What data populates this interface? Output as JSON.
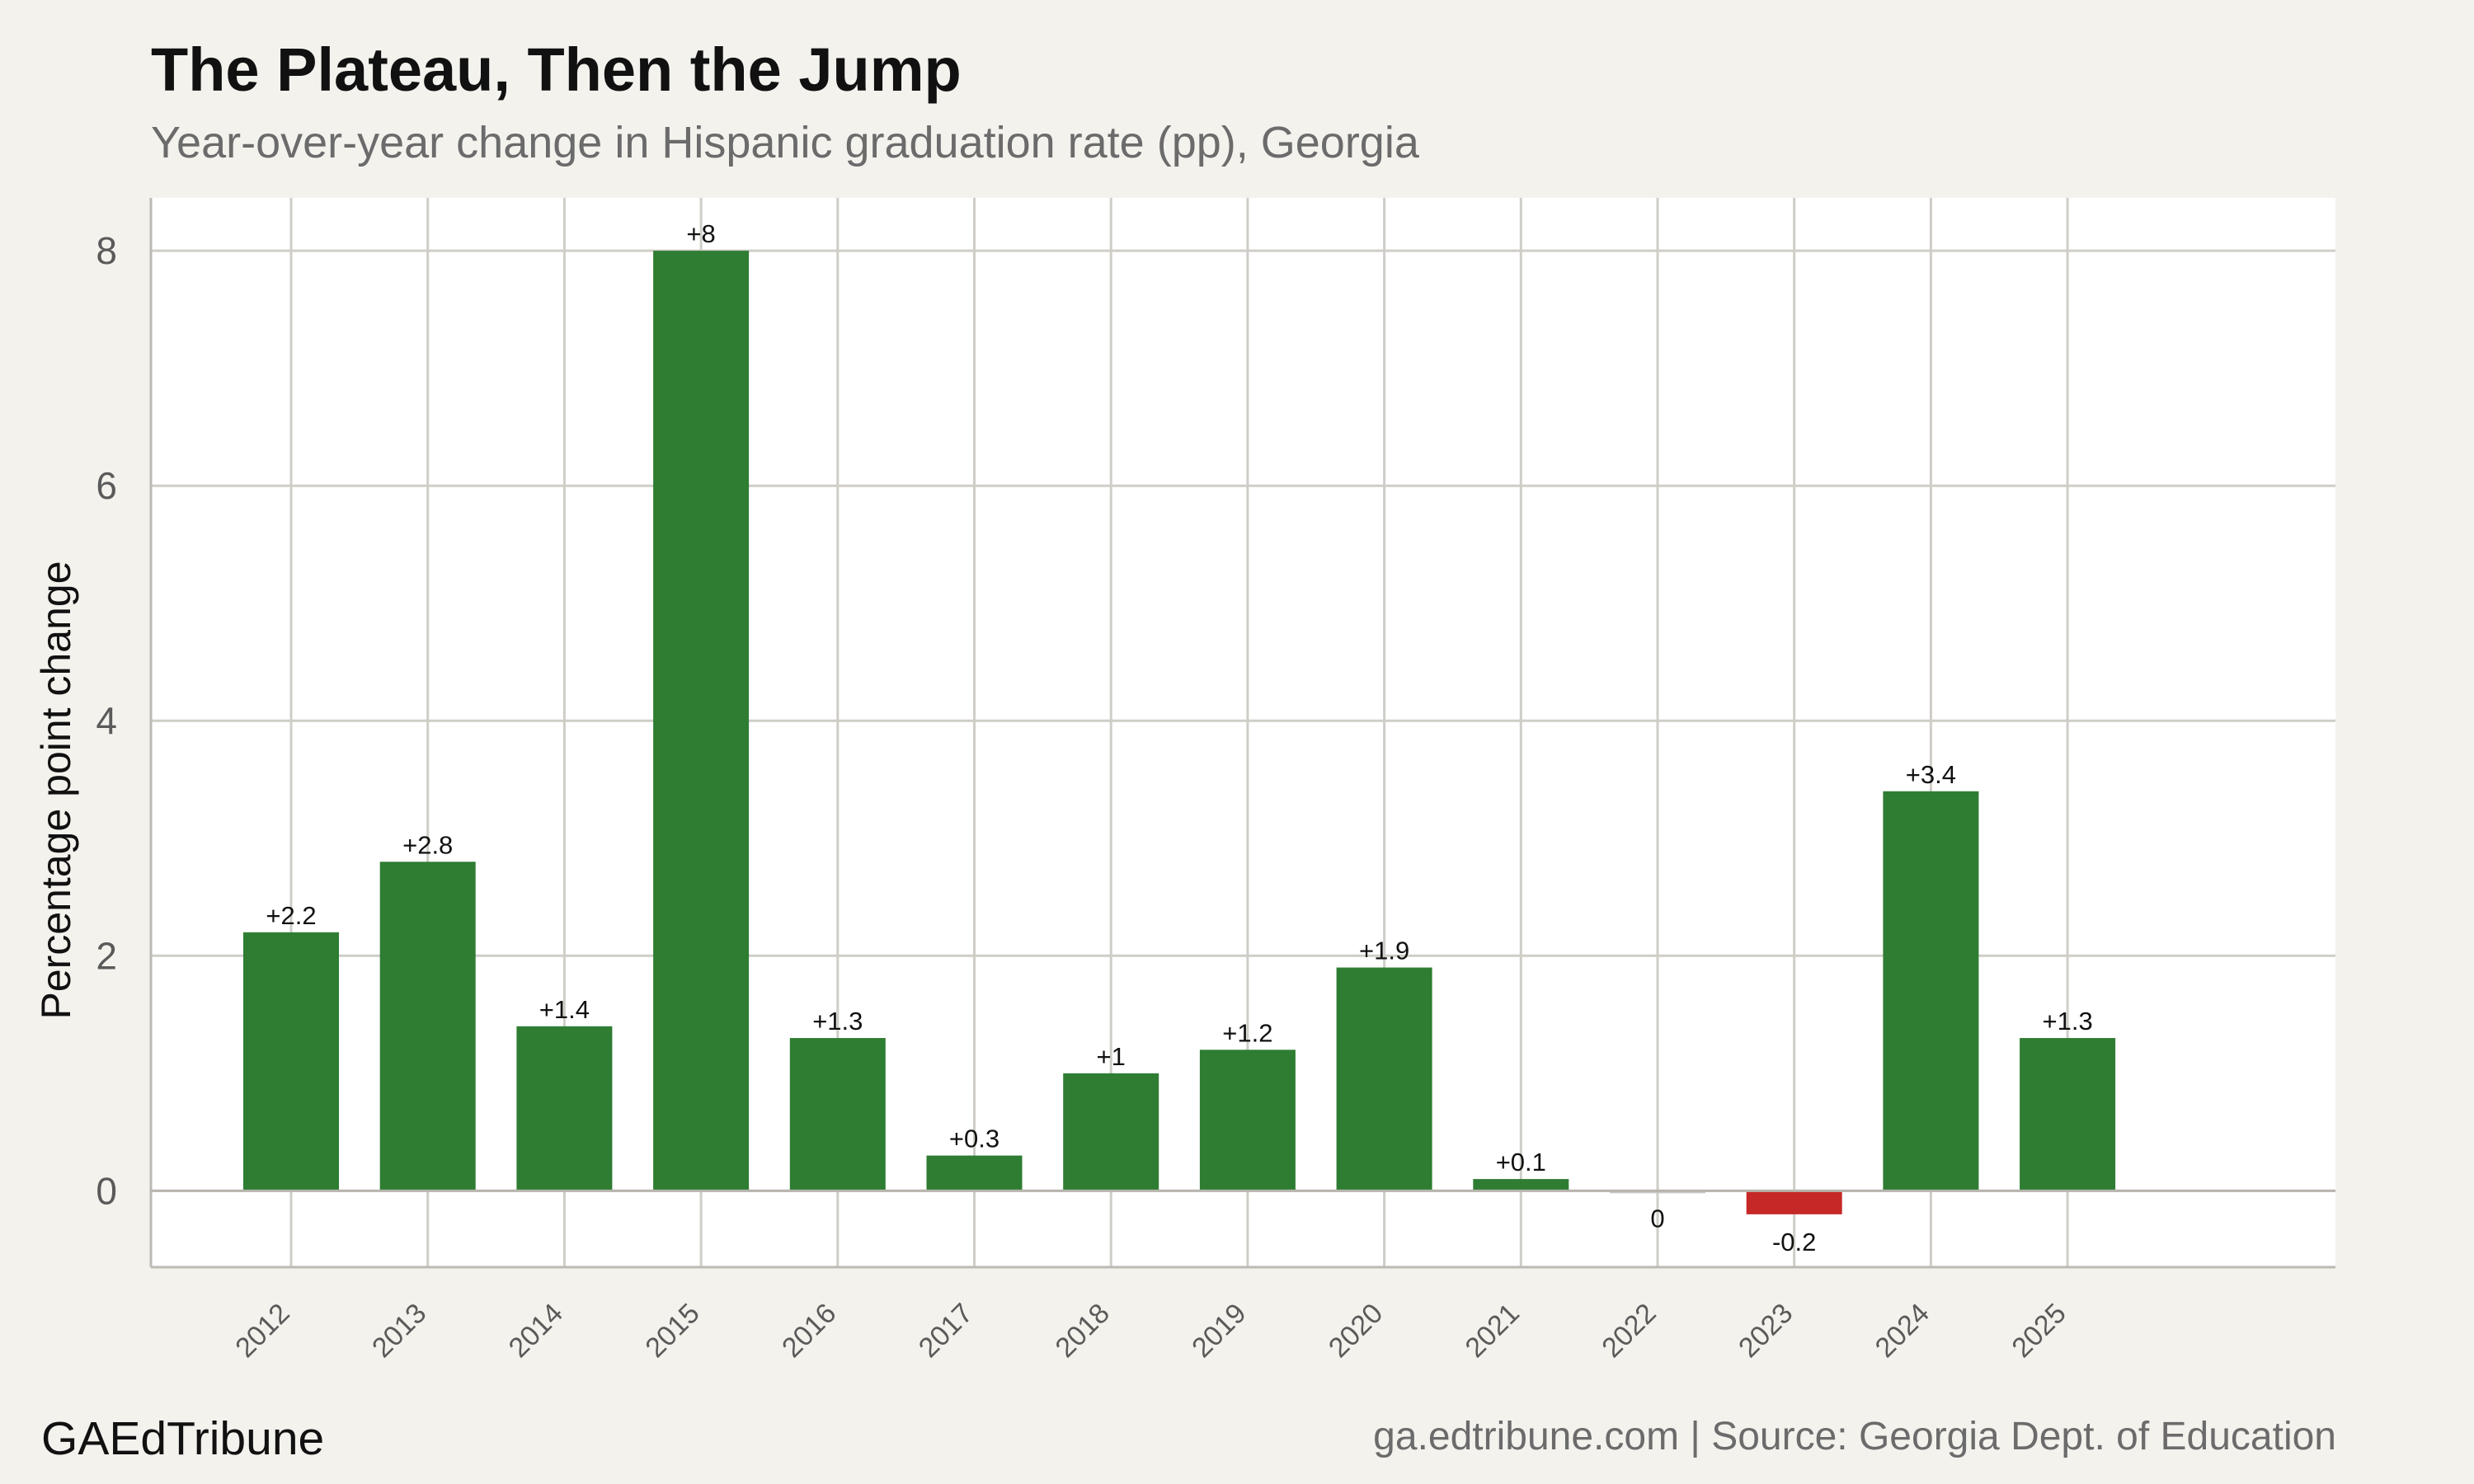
{
  "header": {
    "title": "The Plateau, Then the Jump",
    "subtitle": "Year-over-year change in Hispanic graduation rate (pp), Georgia"
  },
  "footer": {
    "brand": "GAEdTribune",
    "source": "ga.edtribune.com | Source: Georgia Dept. of Education"
  },
  "colors": {
    "positive": "#2e7d32",
    "negative": "#c62828",
    "panel": "#ffffff",
    "background": "#f4f2ed",
    "grid": "#cfcdc7"
  },
  "chart_data": {
    "type": "bar",
    "title": "The Plateau, Then the Jump",
    "subtitle": "Year-over-year change in Hispanic graduation rate (pp), Georgia",
    "xlabel": "",
    "ylabel": "Percentage point change",
    "categories": [
      "2012",
      "2013",
      "2014",
      "2015",
      "2016",
      "2017",
      "2018",
      "2019",
      "2020",
      "2021",
      "2022",
      "2023",
      "2024",
      "2025"
    ],
    "values": [
      2.2,
      2.8,
      1.4,
      8,
      1.3,
      0.3,
      1,
      1.2,
      1.9,
      0.1,
      0,
      -0.2,
      3.4,
      1.3
    ],
    "value_labels": [
      "+2.2",
      "+2.8",
      "+1.4",
      "+8",
      "+1.3",
      "+0.3",
      "+1",
      "+1.2",
      "+1.9",
      "+0.1",
      "0",
      "-0.2",
      "+3.4",
      "+1.3"
    ],
    "yticks": [
      0,
      2,
      4,
      6,
      8
    ],
    "ytick_labels": [
      "0",
      "2",
      "4",
      "6",
      "8"
    ],
    "ylim": [
      -0.65,
      8.45
    ],
    "grid": true,
    "legend": "none"
  }
}
